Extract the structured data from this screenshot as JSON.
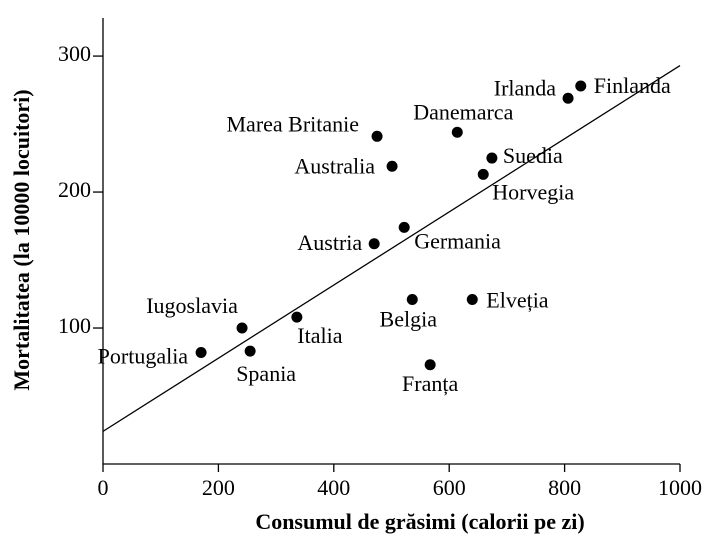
{
  "chart_data": {
    "type": "scatter",
    "xlabel": "Consumul de grăsimi (calorii pe zi)",
    "ylabel": "Mortalitatea (la 10000 locuitori)",
    "xlim": [
      0,
      1000
    ],
    "ylim": [
      0,
      328
    ],
    "xticks": [
      0,
      200,
      400,
      600,
      800,
      1000
    ],
    "yticks": [
      100,
      200,
      300
    ],
    "color": "#000000",
    "labels": [
      "Portugalia",
      "Iugoslavia",
      "Spania",
      "Italia",
      "Austria",
      "Marea Britanie",
      "Australia",
      "Germania",
      "Belgia",
      "Franța",
      "Danemarca",
      "Elveția",
      "Suedia",
      "Horvegia",
      "Irlanda",
      "Finlanda"
    ],
    "x": [
      170,
      241,
      255,
      336,
      470,
      475,
      501,
      522,
      536,
      567,
      614,
      640,
      674,
      659,
      806,
      828
    ],
    "y": [
      82,
      100,
      83,
      108,
      162,
      241,
      219,
      174,
      121,
      73,
      244,
      121,
      225,
      213,
      269,
      278
    ],
    "trend_line": {
      "x": [
        0,
        1000
      ],
      "y": [
        24,
        293
      ]
    }
  }
}
